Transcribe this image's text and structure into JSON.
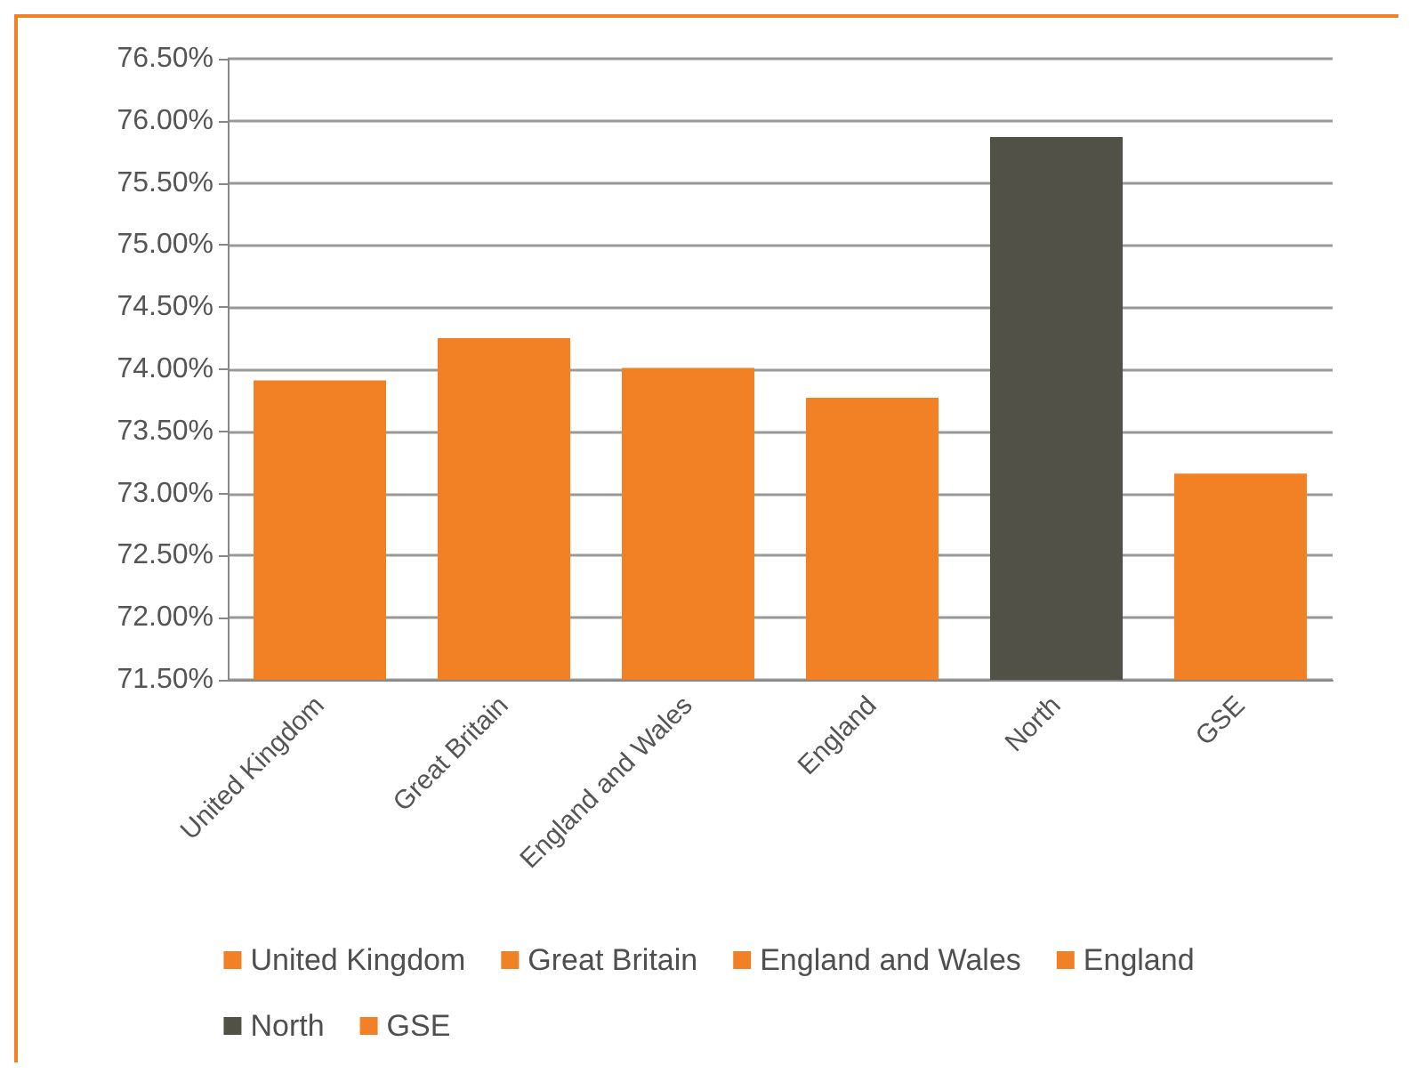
{
  "chart_data": {
    "type": "bar",
    "stacked": true,
    "categories": [
      "United Kingdom",
      "Great Britain",
      "England and Wales",
      "England",
      "North",
      "GSE"
    ],
    "series": [
      {
        "name": "United Kingdom",
        "color": "#f28024",
        "values": [
          73.91,
          null,
          null,
          null,
          null,
          null
        ]
      },
      {
        "name": "Great Britain",
        "color": "#f28024",
        "values": [
          null,
          74.25,
          null,
          null,
          null,
          null
        ]
      },
      {
        "name": "England and Wales",
        "color": "#f28024",
        "values": [
          null,
          null,
          74.01,
          null,
          null,
          null
        ]
      },
      {
        "name": "England",
        "color": "#f28024",
        "values": [
          null,
          null,
          null,
          73.77,
          null,
          null
        ]
      },
      {
        "name": "North",
        "color": "#525148",
        "values": [
          null,
          null,
          null,
          null,
          75.87,
          null
        ]
      },
      {
        "name": "GSE",
        "color": "#f28024",
        "values": [
          null,
          null,
          null,
          null,
          null,
          73.16
        ]
      }
    ],
    "ylim": [
      71.5,
      76.5
    ],
    "yticks": [
      {
        "value": 71.5,
        "label": "71.50%"
      },
      {
        "value": 72,
        "label": "72.00%"
      },
      {
        "value": 72.5,
        "label": "72.50%"
      },
      {
        "value": 73,
        "label": "73.00%"
      },
      {
        "value": 73.5,
        "label": "73.50%"
      },
      {
        "value": 74,
        "label": "74.00%"
      },
      {
        "value": 74.5,
        "label": "74.50%"
      },
      {
        "value": 75,
        "label": "75.00%"
      },
      {
        "value": 75.5,
        "label": "75.50%"
      },
      {
        "value": 76,
        "label": "76.00%"
      },
      {
        "value": 76.5,
        "label": "76.50%"
      }
    ],
    "grid": "y",
    "legend": "bottom"
  }
}
